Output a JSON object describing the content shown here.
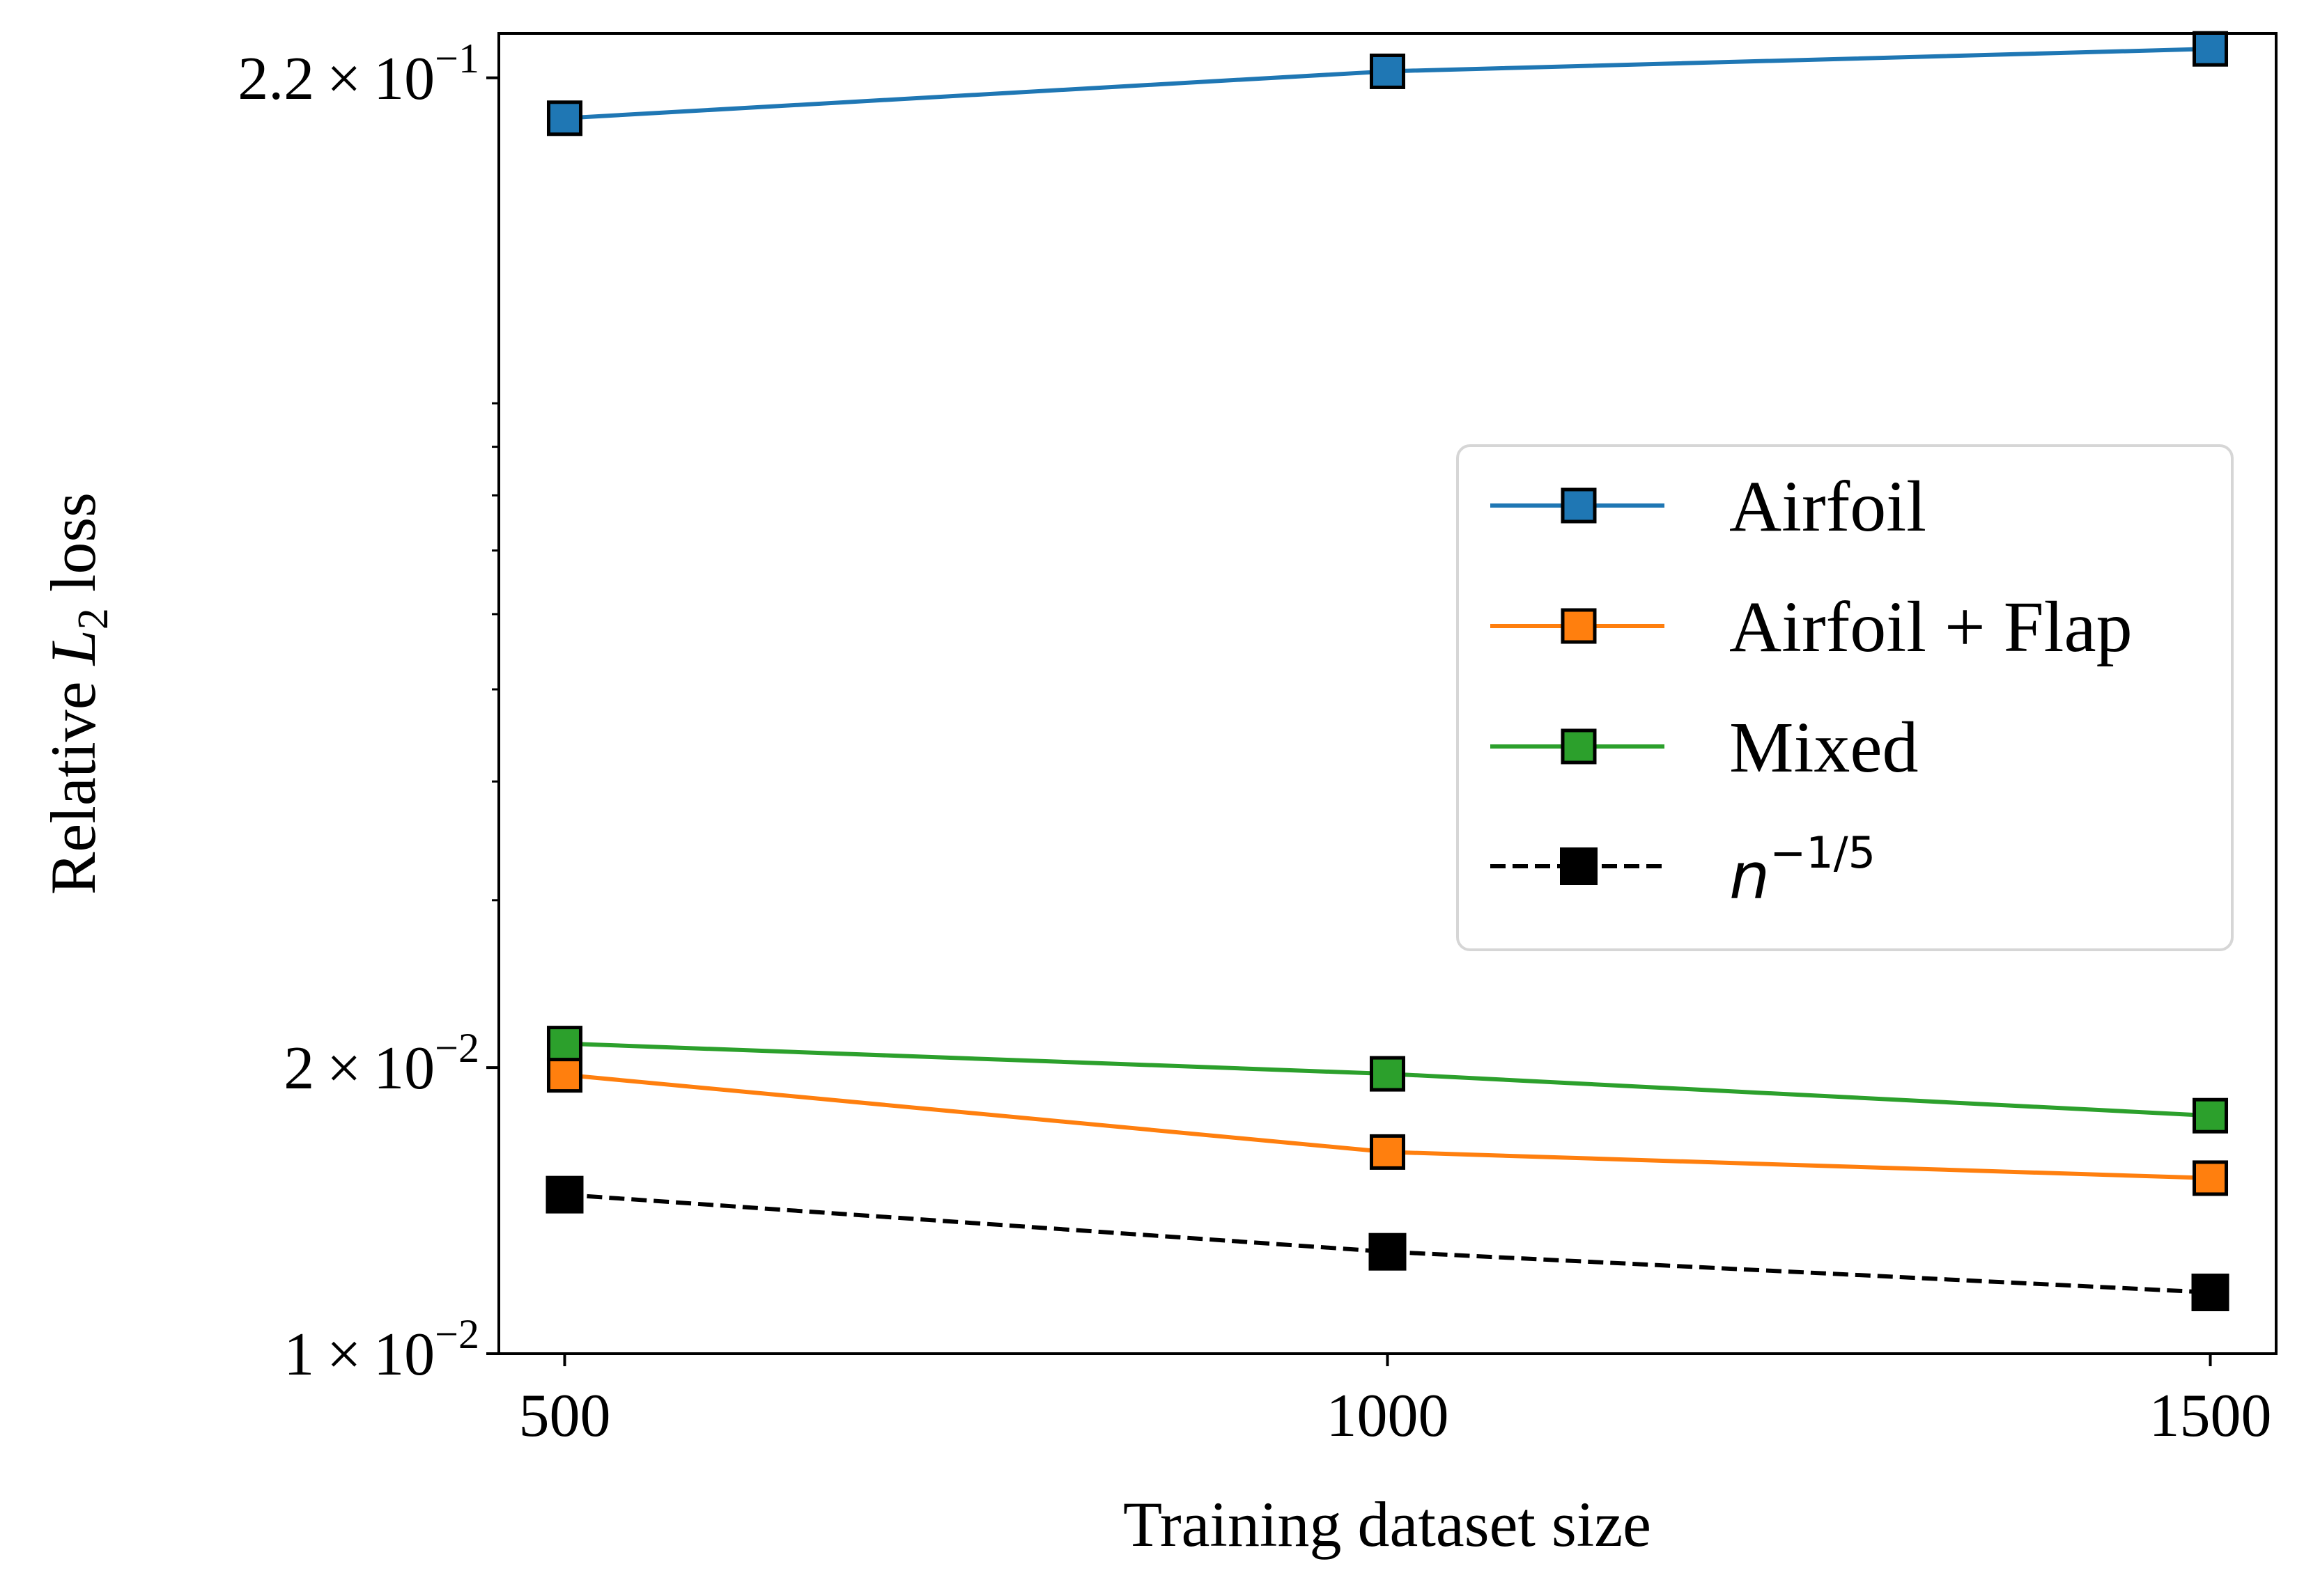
{
  "chart_data": {
    "type": "line",
    "title": "",
    "xlabel": "Training dataset size",
    "ylabel": {
      "prefix": "Relative ",
      "symbol": "L",
      "subscript": "2",
      "suffix": " loss"
    },
    "x": [
      500,
      1000,
      1500
    ],
    "xlim": [
      460,
      1540
    ],
    "ylim": [
      0.01,
      0.245
    ],
    "yscale": "log",
    "x_tick_labels": [
      "500",
      "1000",
      "1500"
    ],
    "y_tick_labels": [
      {
        "value": 0.22,
        "mantissa": "2.2",
        "exponent": "−1"
      },
      {
        "value": 0.02,
        "mantissa": "2",
        "exponent": "−2"
      },
      {
        "value": 0.01,
        "mantissa": "1",
        "exponent": "−2"
      }
    ],
    "y_minor_ticks": [
      0.03,
      0.04,
      0.05,
      0.06,
      0.07,
      0.08,
      0.09,
      0.1
    ],
    "series": [
      {
        "name": "Airfoil",
        "color": "#1f77b4",
        "dashed": false,
        "values": [
          0.1995,
          0.2235,
          0.236
        ]
      },
      {
        "name": "Airfoil + Flap",
        "color": "#ff7f0e",
        "dashed": false,
        "values": [
          0.01965,
          0.0163,
          0.0153
        ]
      },
      {
        "name": "Mixed",
        "color": "#2ca02c",
        "dashed": false,
        "values": [
          0.0212,
          0.0197,
          0.0178
        ]
      },
      {
        "name": "n^{-1/5}",
        "color": "#000000",
        "dashed": true,
        "values": [
          0.0147,
          0.0128,
          0.0116
        ]
      }
    ],
    "legend": {
      "placement": "center-right",
      "entries": [
        {
          "text": "Airfoil"
        },
        {
          "text": "Airfoil + Flap"
        },
        {
          "text": "Mixed"
        },
        {
          "base": "n",
          "exponent": "−1/5"
        }
      ]
    },
    "grid": false
  }
}
